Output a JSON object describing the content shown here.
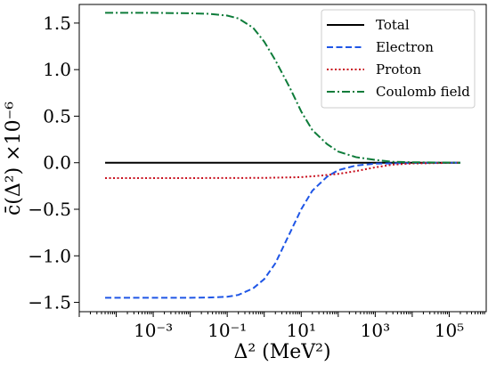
{
  "chart_data": {
    "type": "line",
    "xlabel": "Δ² (MeV²)",
    "ylabel": "c̄(Δ²) ×10⁻⁶",
    "x_scale": "log",
    "xlim": [
      1e-05,
      1000000.0
    ],
    "ylim": [
      -1.6,
      1.7
    ],
    "x_ticks": [
      {
        "value": 0.001,
        "label": "10⁻³"
      },
      {
        "value": 0.1,
        "label": "10⁻¹"
      },
      {
        "value": 10,
        "label": "10¹"
      },
      {
        "value": 1000,
        "label": "10³"
      },
      {
        "value": 100000,
        "label": "10⁵"
      }
    ],
    "y_ticks": [
      {
        "value": 1.5,
        "label": "1.5"
      },
      {
        "value": 1.0,
        "label": "1.0"
      },
      {
        "value": 0.5,
        "label": "0.5"
      },
      {
        "value": 0.0,
        "label": "0.0"
      },
      {
        "value": -0.5,
        "label": "−0.5"
      },
      {
        "value": -1.0,
        "label": "−1.0"
      },
      {
        "value": -1.5,
        "label": "−1.5"
      }
    ],
    "grid": false,
    "legend_position": "top-right",
    "series": [
      {
        "name": "Total",
        "color": "#000000",
        "dash": "solid",
        "points": [
          [
            5e-05,
            0.0
          ],
          [
            0.001,
            0.0
          ],
          [
            0.1,
            0.0
          ],
          [
            10,
            0.0
          ],
          [
            1000,
            0.0
          ],
          [
            200000,
            0.0
          ]
        ]
      },
      {
        "name": "Electron",
        "color": "#1f56e6",
        "dash": "dashed",
        "points": [
          [
            5e-05,
            -1.45
          ],
          [
            0.001,
            -1.45
          ],
          [
            0.01,
            -1.45
          ],
          [
            0.03,
            -1.448
          ],
          [
            0.1,
            -1.44
          ],
          [
            0.2,
            -1.42
          ],
          [
            0.5,
            -1.35
          ],
          [
            1,
            -1.25
          ],
          [
            2,
            -1.08
          ],
          [
            5,
            -0.75
          ],
          [
            10,
            -0.5
          ],
          [
            20,
            -0.3
          ],
          [
            50,
            -0.15
          ],
          [
            100,
            -0.08
          ],
          [
            300,
            -0.03
          ],
          [
            1000,
            -0.01
          ],
          [
            10000,
            -0.003
          ],
          [
            200000,
            0.0
          ]
        ]
      },
      {
        "name": "Proton",
        "color": "#c8101e",
        "dash": "dotted",
        "points": [
          [
            5e-05,
            -0.165
          ],
          [
            0.01,
            -0.165
          ],
          [
            1,
            -0.163
          ],
          [
            10,
            -0.155
          ],
          [
            30,
            -0.14
          ],
          [
            100,
            -0.12
          ],
          [
            300,
            -0.09
          ],
          [
            1000,
            -0.05
          ],
          [
            3000,
            -0.02
          ],
          [
            10000,
            -0.008
          ],
          [
            200000,
            0.0
          ]
        ]
      },
      {
        "name": "Coulomb field",
        "color": "#0e7c3a",
        "dash": "dashdot",
        "points": [
          [
            5e-05,
            1.61
          ],
          [
            0.001,
            1.61
          ],
          [
            0.01,
            1.605
          ],
          [
            0.03,
            1.6
          ],
          [
            0.1,
            1.58
          ],
          [
            0.2,
            1.55
          ],
          [
            0.5,
            1.45
          ],
          [
            1,
            1.3
          ],
          [
            2,
            1.1
          ],
          [
            5,
            0.8
          ],
          [
            10,
            0.55
          ],
          [
            20,
            0.35
          ],
          [
            50,
            0.2
          ],
          [
            100,
            0.12
          ],
          [
            300,
            0.06
          ],
          [
            1000,
            0.03
          ],
          [
            3000,
            0.01
          ],
          [
            10000,
            0.005
          ],
          [
            200000,
            0.0
          ]
        ]
      }
    ]
  }
}
